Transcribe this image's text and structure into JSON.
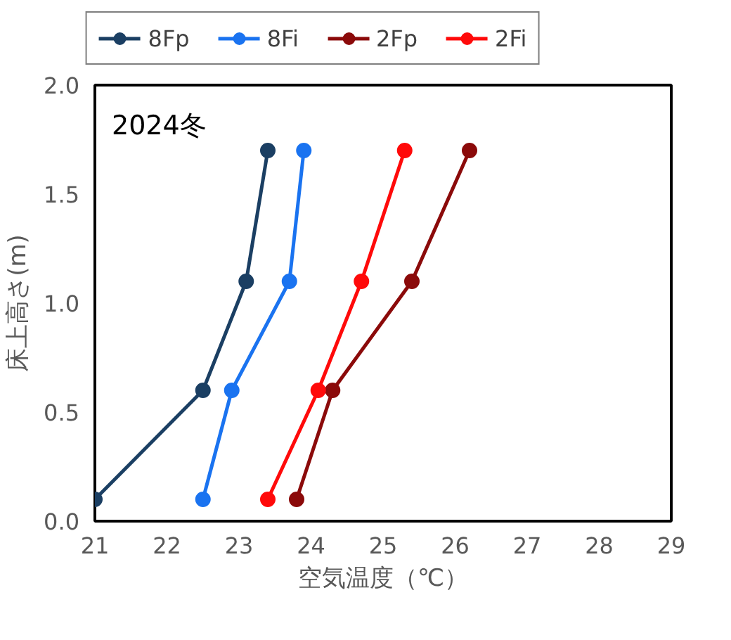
{
  "chart_data": {
    "type": "line",
    "xlabel": "空気温度（℃）",
    "ylabel": "床上高さ(m)",
    "annotations": [
      "2024冬"
    ],
    "xlim": [
      21,
      29
    ],
    "xticks": [
      21,
      22,
      23,
      24,
      25,
      26,
      27,
      28,
      29
    ],
    "ylim": [
      0,
      2.0
    ],
    "yticks": [
      {
        "value": 0,
        "label": "0.0"
      },
      {
        "value": 0.5,
        "label": "0.5"
      },
      {
        "value": 1.0,
        "label": "1.0"
      },
      {
        "value": 1.5,
        "label": "1.5"
      },
      {
        "value": 2.0,
        "label": "2.0"
      }
    ],
    "grid": false,
    "legend": "top",
    "marker": "circle",
    "line_style": "solid",
    "series": [
      {
        "name": "8Fp",
        "color": "#1b3f63",
        "x": [
          21.0,
          22.5,
          23.1,
          23.4
        ],
        "values": [
          0.1,
          0.6,
          1.1,
          1.7
        ]
      },
      {
        "name": "8Fi",
        "color": "#1a73f0",
        "x": [
          22.5,
          22.9,
          23.7,
          23.9
        ],
        "values": [
          0.1,
          0.6,
          1.1,
          1.7
        ]
      },
      {
        "name": "2Fp",
        "color": "#8b0a0a",
        "x": [
          23.8,
          24.3,
          25.4,
          26.2
        ],
        "values": [
          0.1,
          0.6,
          1.1,
          1.7
        ]
      },
      {
        "name": "2Fi",
        "color": "#ff0a0a",
        "x": [
          23.4,
          24.1,
          24.7,
          25.3
        ],
        "values": [
          0.1,
          0.6,
          1.1,
          1.7
        ]
      }
    ]
  }
}
